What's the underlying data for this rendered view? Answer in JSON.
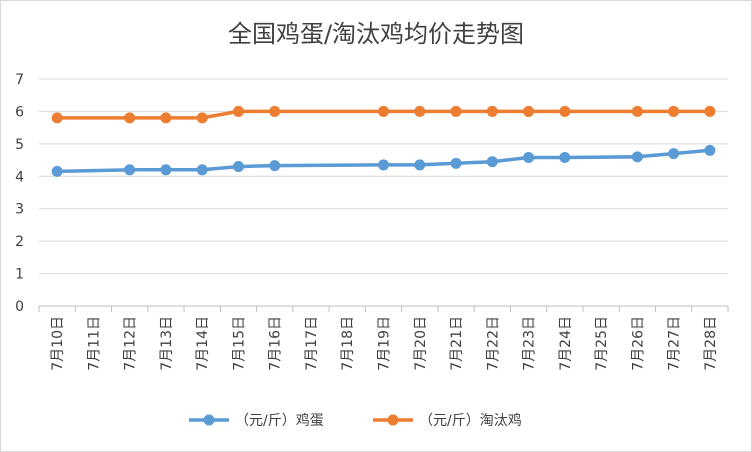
{
  "chart_data": {
    "type": "line",
    "title": "全国鸡蛋/淘汰鸡均价走势图",
    "categories": [
      "7月10日",
      "7月11日",
      "7月12日",
      "7月13日",
      "7月14日",
      "7月15日",
      "7月16日",
      "7月17日",
      "7月18日",
      "7月19日",
      "7月20日",
      "7月21日",
      "7月22日",
      "7月23日",
      "7月24日",
      "7月25日",
      "7月26日",
      "7月27日",
      "7月28日"
    ],
    "series": [
      {
        "name": "（元/斤）鸡蛋",
        "color": "#5b9bd5",
        "values": [
          4.15,
          null,
          4.2,
          4.2,
          4.2,
          4.3,
          4.33,
          null,
          null,
          4.35,
          4.35,
          4.4,
          4.45,
          4.58,
          4.58,
          null,
          4.6,
          4.7,
          4.8
        ]
      },
      {
        "name": "（元/斤）淘汰鸡",
        "color": "#ed7d31",
        "values": [
          5.8,
          null,
          5.8,
          5.8,
          5.8,
          6.0,
          6.0,
          null,
          null,
          6.0,
          6.0,
          6.0,
          6.0,
          6.0,
          6.0,
          null,
          6.0,
          6.0,
          6.0
        ]
      }
    ],
    "ylim": [
      0,
      7
    ],
    "yticks": [
      0,
      1,
      2,
      3,
      4,
      5,
      6,
      7
    ],
    "xlabel": "",
    "ylabel": "",
    "grid": true,
    "legend_position": "bottom"
  }
}
